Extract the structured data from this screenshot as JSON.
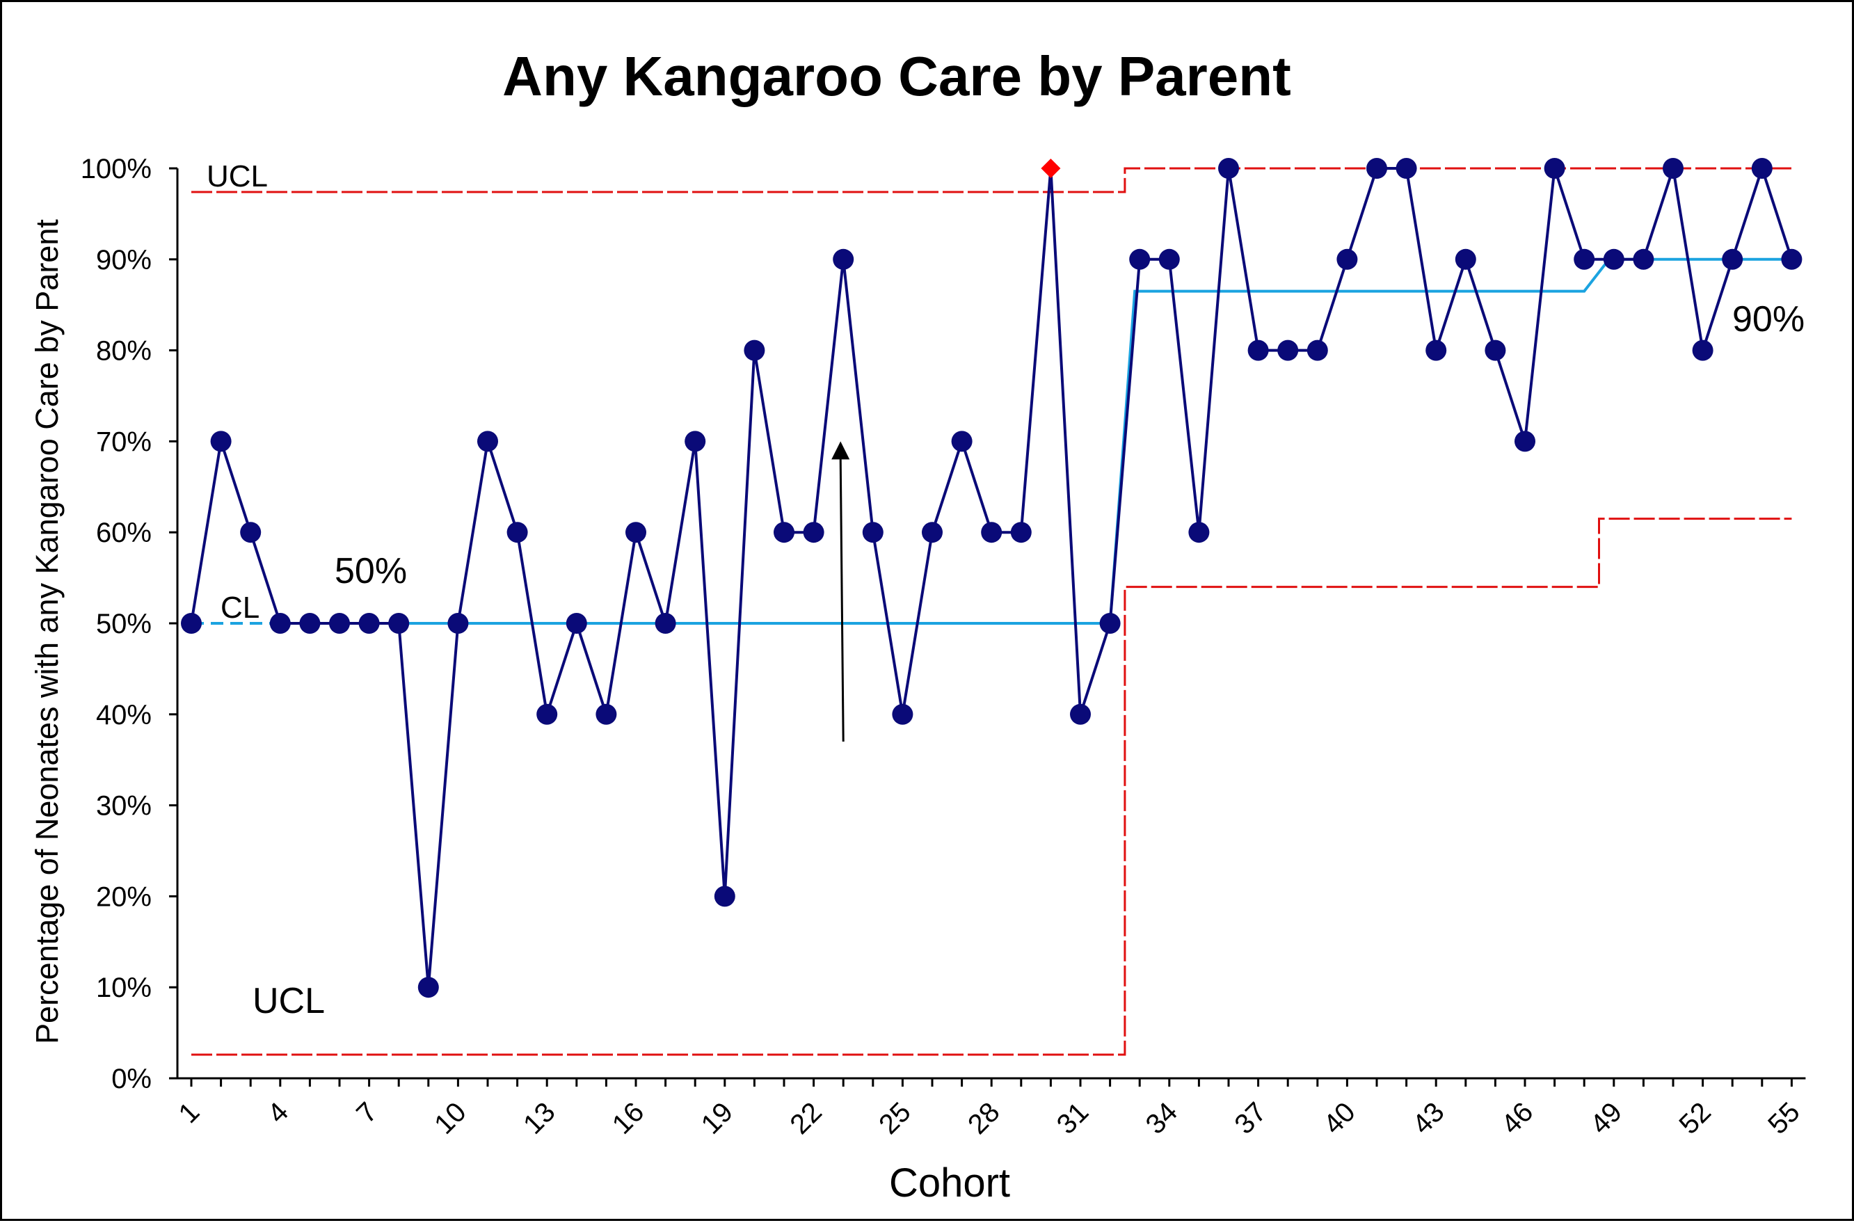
{
  "chart_data": {
    "type": "line",
    "title": "Any Kangaroo Care by Parent",
    "xlabel": "Cohort",
    "ylabel": "Percentage of Neonates with any Kangaroo Care by Parent",
    "x": [
      1,
      2,
      3,
      4,
      5,
      6,
      7,
      8,
      9,
      10,
      11,
      12,
      13,
      14,
      15,
      16,
      17,
      18,
      19,
      20,
      21,
      22,
      23,
      24,
      25,
      26,
      27,
      28,
      29,
      30,
      31,
      32,
      33,
      34,
      35,
      36,
      37,
      38,
      39,
      40,
      41,
      42,
      43,
      44,
      45,
      46,
      47,
      48,
      49,
      50,
      51,
      52,
      53,
      54,
      55
    ],
    "xticks": [
      "1",
      "4",
      "7",
      "10",
      "13",
      "16",
      "19",
      "22",
      "25",
      "28",
      "31",
      "34",
      "37",
      "40",
      "43",
      "46",
      "49",
      "52",
      "55"
    ],
    "ylim": [
      0,
      100
    ],
    "yticks": [
      "0%",
      "10%",
      "20%",
      "30%",
      "40%",
      "50%",
      "60%",
      "70%",
      "80%",
      "90%",
      "100%"
    ],
    "grid": false,
    "series": [
      {
        "role": "data",
        "values": [
          50,
          70,
          60,
          50,
          50,
          50,
          50,
          50,
          10,
          50,
          70,
          60,
          40,
          50,
          40,
          60,
          50,
          70,
          20,
          80,
          60,
          60,
          90,
          60,
          40,
          60,
          70,
          60,
          60,
          100,
          40,
          50,
          90,
          90,
          60,
          100,
          80,
          80,
          80,
          90,
          100,
          100,
          80,
          90,
          80,
          70,
          100,
          90,
          90,
          90,
          100,
          80,
          90,
          100,
          90
        ],
        "color": "#0a0a78"
      },
      {
        "role": "center-line",
        "segments": [
          {
            "x": [
              1,
              32
            ],
            "y": 50
          },
          {
            "x": [
              33,
              48
            ],
            "y": 86.5
          },
          {
            "x": [
              49,
              55
            ],
            "y": 90
          }
        ],
        "color": "#1ba3e0"
      },
      {
        "role": "upper-control-limit",
        "segments": [
          {
            "x": [
              1,
              32
            ],
            "y": 97.4
          },
          {
            "x": [
              33,
              55
            ],
            "y": 100
          }
        ],
        "color": "#e01010"
      },
      {
        "role": "lower-control-limit",
        "segments": [
          {
            "x": [
              1,
              32
            ],
            "y": 2.6
          },
          {
            "x": [
              33,
              48
            ],
            "y": 54
          },
          {
            "x": [
              49,
              55
            ],
            "y": 61.5
          }
        ],
        "color": "#e01010"
      }
    ],
    "special_cause_points": [
      30
    ],
    "special_cause_color": "#ff0000",
    "annotations": {
      "ucl_top": "UCL",
      "cl": "CL",
      "cl_value_first": "50%",
      "ucl_bottom": "UCL",
      "cl_value_last": "90%"
    },
    "arrow": {
      "x": 23,
      "y_from": 37,
      "y_to": 70
    }
  }
}
